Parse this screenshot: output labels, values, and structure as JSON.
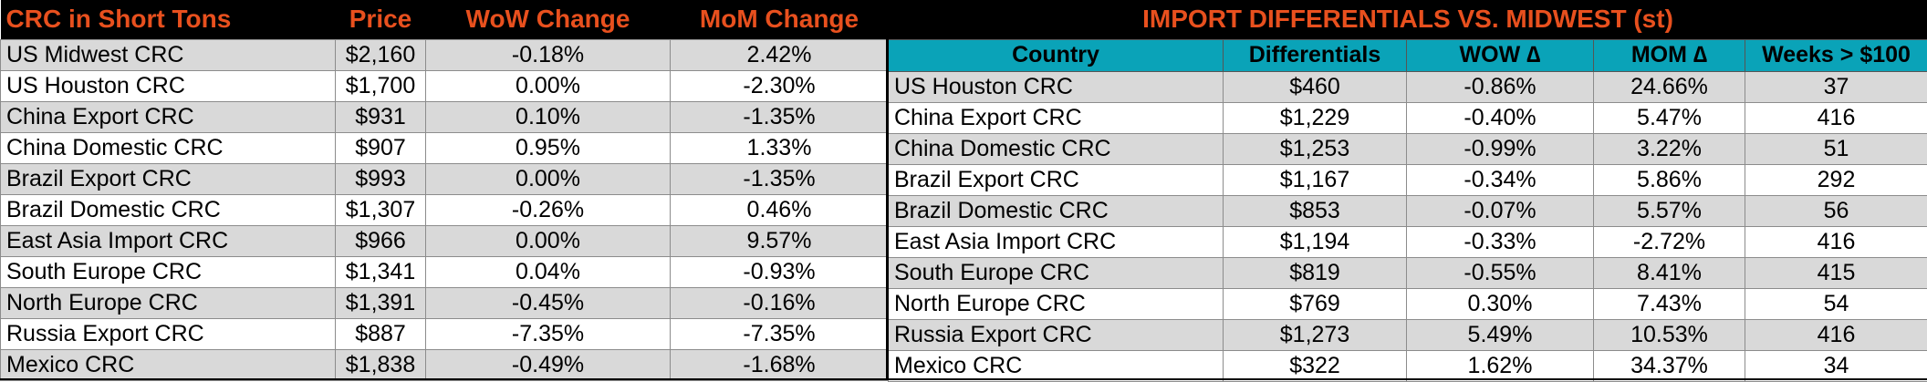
{
  "left_table": {
    "headers": [
      "CRC in Short Tons",
      "Price",
      "WoW Change",
      "MoM Change"
    ],
    "rows": [
      {
        "name": "US Midwest CRC",
        "price": "$2,160",
        "wow": "-0.18%",
        "mom": "2.42%"
      },
      {
        "name": "US Houston CRC",
        "price": "$1,700",
        "wow": "0.00%",
        "mom": "-2.30%"
      },
      {
        "name": "China Export CRC",
        "price": "$931",
        "wow": "0.10%",
        "mom": "-1.35%"
      },
      {
        "name": "China Domestic CRC",
        "price": "$907",
        "wow": "0.95%",
        "mom": "1.33%"
      },
      {
        "name": "Brazil Export CRC",
        "price": "$993",
        "wow": "0.00%",
        "mom": "-1.35%"
      },
      {
        "name": "Brazil Domestic CRC",
        "price": "$1,307",
        "wow": "-0.26%",
        "mom": "0.46%"
      },
      {
        "name": "East Asia Import CRC",
        "price": "$966",
        "wow": "0.00%",
        "mom": "9.57%"
      },
      {
        "name": "South Europe CRC",
        "price": "$1,341",
        "wow": "0.04%",
        "mom": "-0.93%"
      },
      {
        "name": "North Europe CRC",
        "price": "$1,391",
        "wow": "-0.45%",
        "mom": "-0.16%"
      },
      {
        "name": "Russia Export CRC",
        "price": "$887",
        "wow": "-7.35%",
        "mom": "-7.35%"
      },
      {
        "name": "Mexico CRC",
        "price": "$1,838",
        "wow": "-0.49%",
        "mom": "-1.68%"
      }
    ]
  },
  "right_table": {
    "title": "IMPORT DIFFERENTIALS VS. MIDWEST (st)",
    "headers": [
      "Country",
      "Differentials",
      "WOW ∆",
      "MOM ∆",
      "Weeks > $100"
    ],
    "rows": [
      {
        "name": "US Houston CRC",
        "diff": "$460",
        "wow": "-0.86%",
        "mom": "24.66%",
        "weeks": "37"
      },
      {
        "name": "China Export CRC",
        "diff": "$1,229",
        "wow": "-0.40%",
        "mom": "5.47%",
        "weeks": "416"
      },
      {
        "name": "China Domestic CRC",
        "diff": "$1,253",
        "wow": "-0.99%",
        "mom": "3.22%",
        "weeks": "51"
      },
      {
        "name": "Brazil Export CRC",
        "diff": "$1,167",
        "wow": "-0.34%",
        "mom": "5.86%",
        "weeks": "292"
      },
      {
        "name": "Brazil Domestic CRC",
        "diff": "$853",
        "wow": "-0.07%",
        "mom": "5.57%",
        "weeks": "56"
      },
      {
        "name": "East Asia Import CRC",
        "diff": "$1,194",
        "wow": "-0.33%",
        "mom": "-2.72%",
        "weeks": "416"
      },
      {
        "name": "South Europe CRC",
        "diff": "$819",
        "wow": "-0.55%",
        "mom": "8.41%",
        "weeks": "415"
      },
      {
        "name": "North Europe CRC",
        "diff": "$769",
        "wow": "0.30%",
        "mom": "7.43%",
        "weeks": "54"
      },
      {
        "name": "Russia Export CRC",
        "diff": "$1,273",
        "wow": "5.49%",
        "mom": "10.53%",
        "weeks": "416"
      },
      {
        "name": "Mexico CRC",
        "diff": "$322",
        "wow": "1.62%",
        "mom": "34.37%",
        "weeks": "34"
      }
    ]
  },
  "colors": {
    "header_bg": "#000000",
    "header_text": "#e8501e",
    "subheader_bg": "#0aa3b8",
    "row_grey": "#d9d9d9",
    "row_white": "#ffffff"
  }
}
